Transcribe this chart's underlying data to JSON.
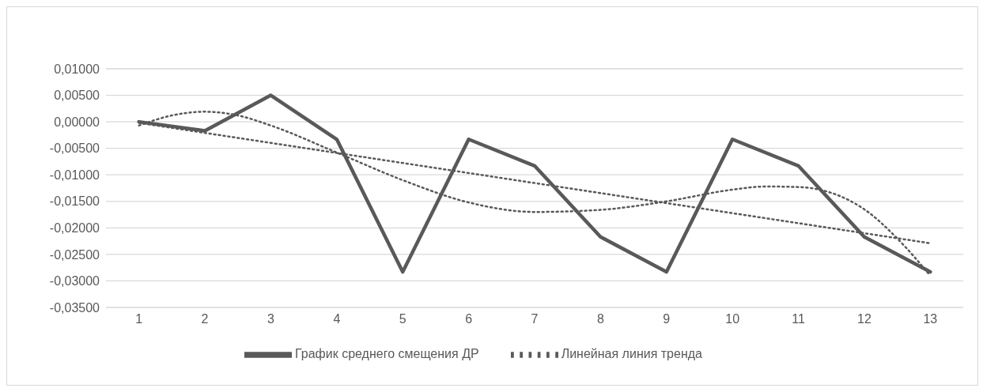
{
  "chart_data": {
    "type": "line",
    "x": [
      1,
      2,
      3,
      4,
      5,
      6,
      7,
      8,
      9,
      10,
      11,
      12,
      13
    ],
    "series": [
      {
        "name": "График среднего смещения ДР",
        "color": "#595959",
        "line_style": "solid",
        "values": [
          0.0,
          -0.0017,
          0.005,
          -0.0033,
          -0.0283,
          -0.0033,
          -0.0083,
          -0.0217,
          -0.0283,
          -0.0033,
          -0.0083,
          -0.0217,
          -0.0283
        ]
      },
      {
        "type": "line",
        "color": "#595959",
        "line_style": "dotted",
        "x": [
          1,
          1.5,
          2,
          2.5,
          3,
          4,
          5,
          6,
          7,
          8,
          9,
          10,
          10.5,
          11,
          12,
          12.5,
          13
        ],
        "values": [
          -0.0007,
          0.0012,
          0.0019,
          0.0012,
          -0.0007,
          -0.0058,
          -0.011,
          -0.0152,
          -0.017,
          -0.0166,
          -0.015,
          -0.0128,
          -0.0122,
          -0.0123,
          -0.0165,
          -0.022,
          -0.029
        ]
      },
      {
        "name": "Линейная линия тренда",
        "type": "line",
        "color": "#595959",
        "line_style": "dotted",
        "x": [
          1,
          13
        ],
        "values": [
          -0.0002,
          -0.0229
        ]
      }
    ],
    "xlim": [
      0.5,
      13.5
    ],
    "xticks": [
      1,
      2,
      3,
      4,
      5,
      6,
      7,
      8,
      9,
      10,
      11,
      12,
      13
    ],
    "ylim": [
      -0.035,
      0.01
    ],
    "yticks": [
      {
        "value": -0.035,
        "label": "-0,03500"
      },
      {
        "value": -0.03,
        "label": "-0,03000"
      },
      {
        "value": -0.025,
        "label": "-0,02500"
      },
      {
        "value": -0.02,
        "label": "-0,02000"
      },
      {
        "value": -0.015,
        "label": "-0,01500"
      },
      {
        "value": -0.01,
        "label": "-0,01000"
      },
      {
        "value": -0.005,
        "label": "-0,00500"
      },
      {
        "value": 0,
        "label": "0,00000"
      },
      {
        "value": 0.005,
        "label": "0,00500"
      },
      {
        "value": 0.01,
        "label": "0,01000"
      }
    ],
    "grid": "y",
    "legend": "bottom",
    "marker": "none"
  }
}
